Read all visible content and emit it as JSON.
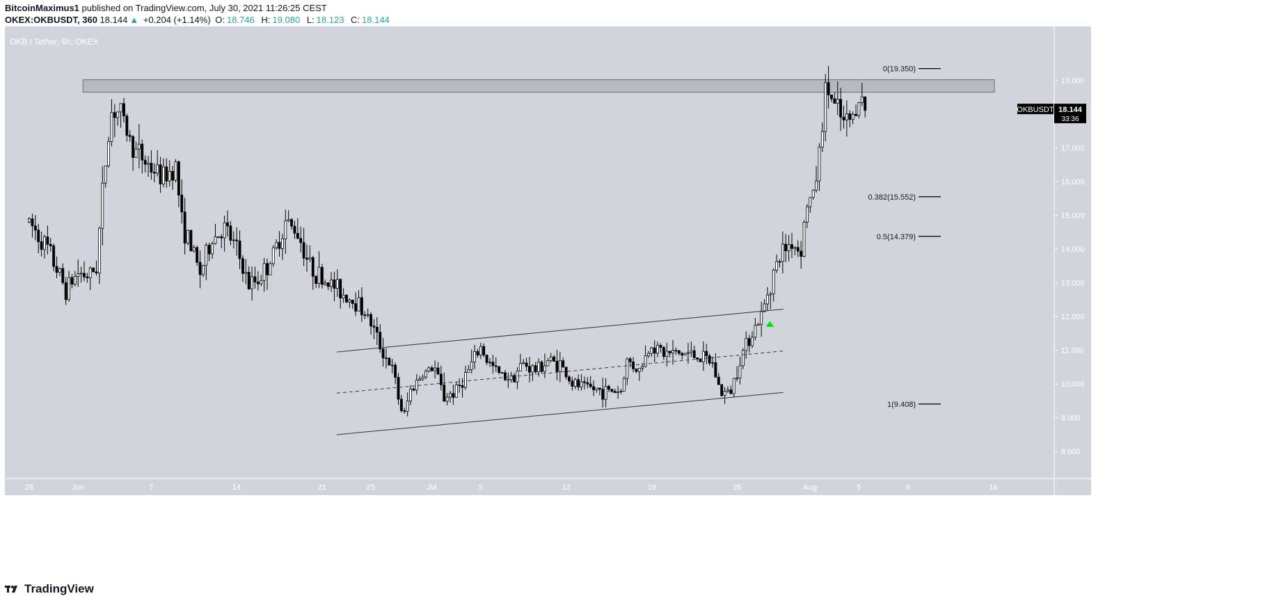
{
  "header": {
    "author": "BitcoinMaximus1",
    "published_text": "published on TradingView.com, July 30, 2021 11:26:25 CEST",
    "symbol": "OKEX:OKBUSDT, 360",
    "last": "18.144",
    "change": "+0.204 (+1.14%)",
    "o_label": "O:",
    "o_val": "18.746",
    "h_label": "H:",
    "h_val": "19.080",
    "l_label": "L:",
    "l_val": "18.123",
    "c_label": "C:",
    "c_val": "18.144"
  },
  "footer": {
    "brand": "TradingView"
  },
  "colors": {
    "plot_bg": "#d1d4dc",
    "candle": "#000000",
    "arrow": "#00e600",
    "zone": "#9598a1"
  },
  "chart_data": {
    "type": "candlestick",
    "title": "OKB / Tether, 6h, OKEX",
    "currency_label": "USDT",
    "ylim": [
      7.2,
      20.6
    ],
    "y_ticks": [
      "8.000",
      "9.000",
      "10.000",
      "11.000",
      "12.000",
      "13.000",
      "14.000",
      "15.000",
      "16.000",
      "17.000",
      "18.000",
      "19.000"
    ],
    "x_ticks": [
      {
        "label": "28",
        "day": 0
      },
      {
        "label": "Jun",
        "day": 4
      },
      {
        "label": "7",
        "day": 10
      },
      {
        "label": "14",
        "day": 17
      },
      {
        "label": "21",
        "day": 24
      },
      {
        "label": "25",
        "day": 28
      },
      {
        "label": "Jul",
        "day": 33
      },
      {
        "label": "5",
        "day": 37
      },
      {
        "label": "12",
        "day": 44
      },
      {
        "label": "19",
        "day": 51
      },
      {
        "label": "26",
        "day": 58
      },
      {
        "label": "Aug",
        "day": 64
      },
      {
        "label": "5",
        "day": 68
      },
      {
        "label": "9",
        "day": 72
      },
      {
        "label": "16",
        "day": 79
      }
    ],
    "last_price": {
      "symbol": "OKBUSDT",
      "price": "18.144",
      "countdown": "33:36"
    },
    "resistance_zone": {
      "from": 18.65,
      "to": 19.02,
      "start_day": 4.4,
      "end_day": 79.1
    },
    "channel": {
      "upper": {
        "day": [
          25.2,
          61.8
        ],
        "price": [
          10.95,
          12.22
        ]
      },
      "middle": {
        "day": [
          25.2,
          61.8
        ],
        "price": [
          9.73,
          10.98
        ]
      },
      "lower": {
        "day": [
          25.2,
          61.8
        ],
        "price": [
          8.5,
          9.75
        ]
      }
    },
    "fib_levels": [
      {
        "label": "0(19.350)",
        "price": 19.35
      },
      {
        "label": "0.382(15.552)",
        "price": 15.552
      },
      {
        "label": "0.5(14.379)",
        "price": 14.379
      },
      {
        "label": "1(9.408)",
        "price": 9.408
      }
    ],
    "breakout_marker": {
      "day": 60.7,
      "price": 11.78
    },
    "anchors": [
      {
        "day": 0,
        "price": 14.8
      },
      {
        "day": 1.5,
        "price": 14.0
      },
      {
        "day": 2.5,
        "price": 13.2
      },
      {
        "day": 3,
        "price": 12.8
      },
      {
        "day": 4,
        "price": 13.3
      },
      {
        "day": 5,
        "price": 13.2
      },
      {
        "day": 5.5,
        "price": 13.5
      },
      {
        "day": 6.2,
        "price": 16.5
      },
      {
        "day": 6.8,
        "price": 18.2
      },
      {
        "day": 7.5,
        "price": 18.0
      },
      {
        "day": 8.5,
        "price": 17.0
      },
      {
        "day": 10,
        "price": 16.4
      },
      {
        "day": 11,
        "price": 16.1
      },
      {
        "day": 12,
        "price": 16.5
      },
      {
        "day": 12.5,
        "price": 14.8
      },
      {
        "day": 13.5,
        "price": 13.8
      },
      {
        "day": 14,
        "price": 13.3
      },
      {
        "day": 15,
        "price": 14.3
      },
      {
        "day": 16,
        "price": 14.6
      },
      {
        "day": 17,
        "price": 14.0
      },
      {
        "day": 18,
        "price": 12.9
      },
      {
        "day": 19,
        "price": 13.2
      },
      {
        "day": 20,
        "price": 13.8
      },
      {
        "day": 21,
        "price": 14.8
      },
      {
        "day": 22,
        "price": 14.5
      },
      {
        "day": 23,
        "price": 13.5
      },
      {
        "day": 24,
        "price": 13.1
      },
      {
        "day": 25,
        "price": 12.9
      },
      {
        "day": 26,
        "price": 12.6
      },
      {
        "day": 27,
        "price": 12.4
      },
      {
        "day": 28,
        "price": 11.8
      },
      {
        "day": 28.8,
        "price": 11.1
      },
      {
        "day": 29.8,
        "price": 10.4
      },
      {
        "day": 30.3,
        "price": 9.5
      },
      {
        "day": 30.7,
        "price": 9.0
      },
      {
        "day": 31.2,
        "price": 9.8
      },
      {
        "day": 32.2,
        "price": 10.3
      },
      {
        "day": 33.2,
        "price": 10.5
      },
      {
        "day": 34,
        "price": 9.6
      },
      {
        "day": 35,
        "price": 9.8
      },
      {
        "day": 36,
        "price": 10.4
      },
      {
        "day": 37,
        "price": 11.1
      },
      {
        "day": 37.5,
        "price": 10.7
      },
      {
        "day": 38.5,
        "price": 10.3
      },
      {
        "day": 39.5,
        "price": 10.2
      },
      {
        "day": 40.5,
        "price": 10.6
      },
      {
        "day": 41.5,
        "price": 10.4
      },
      {
        "day": 42.5,
        "price": 10.7
      },
      {
        "day": 43.5,
        "price": 10.6
      },
      {
        "day": 44.5,
        "price": 10.0
      },
      {
        "day": 45.5,
        "price": 9.9
      },
      {
        "day": 47,
        "price": 9.8
      },
      {
        "day": 48.5,
        "price": 9.8
      },
      {
        "day": 49,
        "price": 10.7
      },
      {
        "day": 50,
        "price": 10.4
      },
      {
        "day": 51,
        "price": 11.2
      },
      {
        "day": 52,
        "price": 10.9
      },
      {
        "day": 53,
        "price": 10.9
      },
      {
        "day": 54,
        "price": 10.9
      },
      {
        "day": 55,
        "price": 10.8
      },
      {
        "day": 56,
        "price": 10.6
      },
      {
        "day": 56.7,
        "price": 9.7
      },
      {
        "day": 57.5,
        "price": 9.8
      },
      {
        "day": 58.2,
        "price": 10.7
      },
      {
        "day": 59,
        "price": 11.4
      },
      {
        "day": 60,
        "price": 12.0
      },
      {
        "day": 60.5,
        "price": 12.7
      },
      {
        "day": 61,
        "price": 13.3
      },
      {
        "day": 61.8,
        "price": 14.0
      },
      {
        "day": 62.5,
        "price": 14.2
      },
      {
        "day": 63.2,
        "price": 13.9
      },
      {
        "day": 63.7,
        "price": 15.3
      },
      {
        "day": 64.3,
        "price": 15.6
      },
      {
        "day": 64.9,
        "price": 17.3
      },
      {
        "day": 65.3,
        "price": 18.9
      },
      {
        "day": 66,
        "price": 18.2
      },
      {
        "day": 66.8,
        "price": 17.7
      },
      {
        "day": 67.5,
        "price": 17.9
      },
      {
        "day": 68,
        "price": 18.6
      },
      {
        "day": 68.5,
        "price": 18.144
      }
    ],
    "x_days_range": [
      -2,
      84
    ]
  }
}
